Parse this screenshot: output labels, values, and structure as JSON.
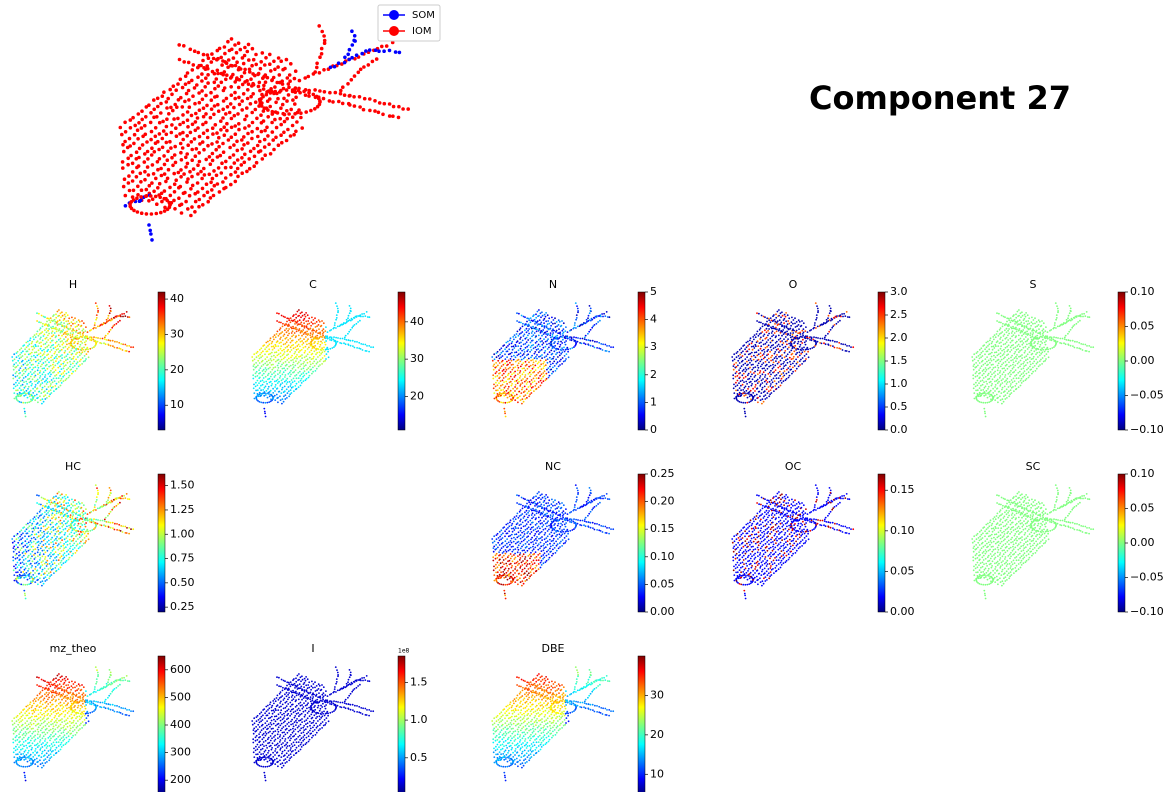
{
  "title": "Component 27",
  "legend": [
    {
      "label": "SOM",
      "color": "#0000ff"
    },
    {
      "label": "IOM",
      "color": "#ff0000"
    }
  ],
  "panels": [
    {
      "title": "H",
      "lim": [
        3,
        42
      ],
      "ticks": [
        10,
        20,
        30,
        40
      ]
    },
    {
      "title": "C",
      "lim": [
        11,
        48
      ],
      "ticks": [
        20,
        30,
        40
      ]
    },
    {
      "title": "N",
      "lim": [
        0,
        5
      ],
      "ticks": [
        0,
        1,
        2,
        3,
        4,
        5
      ]
    },
    {
      "title": "O",
      "lim": [
        0,
        3
      ],
      "ticks": [
        {
          "value": 0,
          "label": "0.0"
        },
        {
          "value": 0.5,
          "label": "0.5"
        },
        {
          "value": 1,
          "label": "1.0"
        },
        {
          "value": 1.5,
          "label": "1.5"
        },
        {
          "value": 2,
          "label": "2.0"
        },
        {
          "value": 2.5,
          "label": "2.5"
        },
        {
          "value": 3,
          "label": "3.0"
        }
      ]
    },
    {
      "title": "S",
      "lim": [
        -0.1,
        0.1
      ],
      "ticks": [
        {
          "value": -0.1,
          "label": "−0.10"
        },
        {
          "value": -0.05,
          "label": "−0.05"
        },
        {
          "value": 0,
          "label": "0.00"
        },
        {
          "value": 0.05,
          "label": "0.05"
        },
        {
          "value": 0.1,
          "label": "0.10"
        }
      ]
    },
    {
      "title": "HC",
      "lim": [
        0.2,
        1.62
      ],
      "ticks": [
        {
          "value": 0.25,
          "label": "0.25"
        },
        {
          "value": 0.5,
          "label": "0.50"
        },
        {
          "value": 0.75,
          "label": "0.75"
        },
        {
          "value": 1,
          "label": "1.00"
        },
        {
          "value": 1.25,
          "label": "1.25"
        },
        {
          "value": 1.5,
          "label": "1.50"
        }
      ]
    },
    {
      "title": "NC",
      "lim": [
        0,
        0.25
      ],
      "ticks": [
        {
          "value": 0,
          "label": "0.00"
        },
        {
          "value": 0.05,
          "label": "0.05"
        },
        {
          "value": 0.1,
          "label": "0.10"
        },
        {
          "value": 0.15,
          "label": "0.15"
        },
        {
          "value": 0.2,
          "label": "0.20"
        },
        {
          "value": 0.25,
          "label": "0.25"
        }
      ]
    },
    {
      "title": "OC",
      "lim": [
        0,
        0.17
      ],
      "ticks": [
        {
          "value": 0,
          "label": "0.00"
        },
        {
          "value": 0.05,
          "label": "0.05"
        },
        {
          "value": 0.1,
          "label": "0.10"
        },
        {
          "value": 0.15,
          "label": "0.15"
        }
      ]
    },
    {
      "title": "SC",
      "lim": [
        -0.1,
        0.1
      ],
      "ticks": [
        {
          "value": -0.1,
          "label": "−0.10"
        },
        {
          "value": -0.05,
          "label": "−0.05"
        },
        {
          "value": 0,
          "label": "0.00"
        },
        {
          "value": 0.05,
          "label": "0.05"
        },
        {
          "value": 0.1,
          "label": "0.10"
        }
      ]
    },
    {
      "title": "mz_theo",
      "lim": [
        150,
        650
      ],
      "ticks": [
        200,
        300,
        400,
        500,
        600
      ]
    },
    {
      "title": "I",
      "lim": [
        0.02,
        1.85
      ],
      "offset": "1e8",
      "ticks": [
        0.5,
        {
          "value": 1,
          "label": "1.0"
        },
        1.5
      ]
    },
    {
      "title": "DBE",
      "lim": [
        5,
        40
      ],
      "ticks": [
        10,
        20,
        30
      ]
    }
  ]
}
